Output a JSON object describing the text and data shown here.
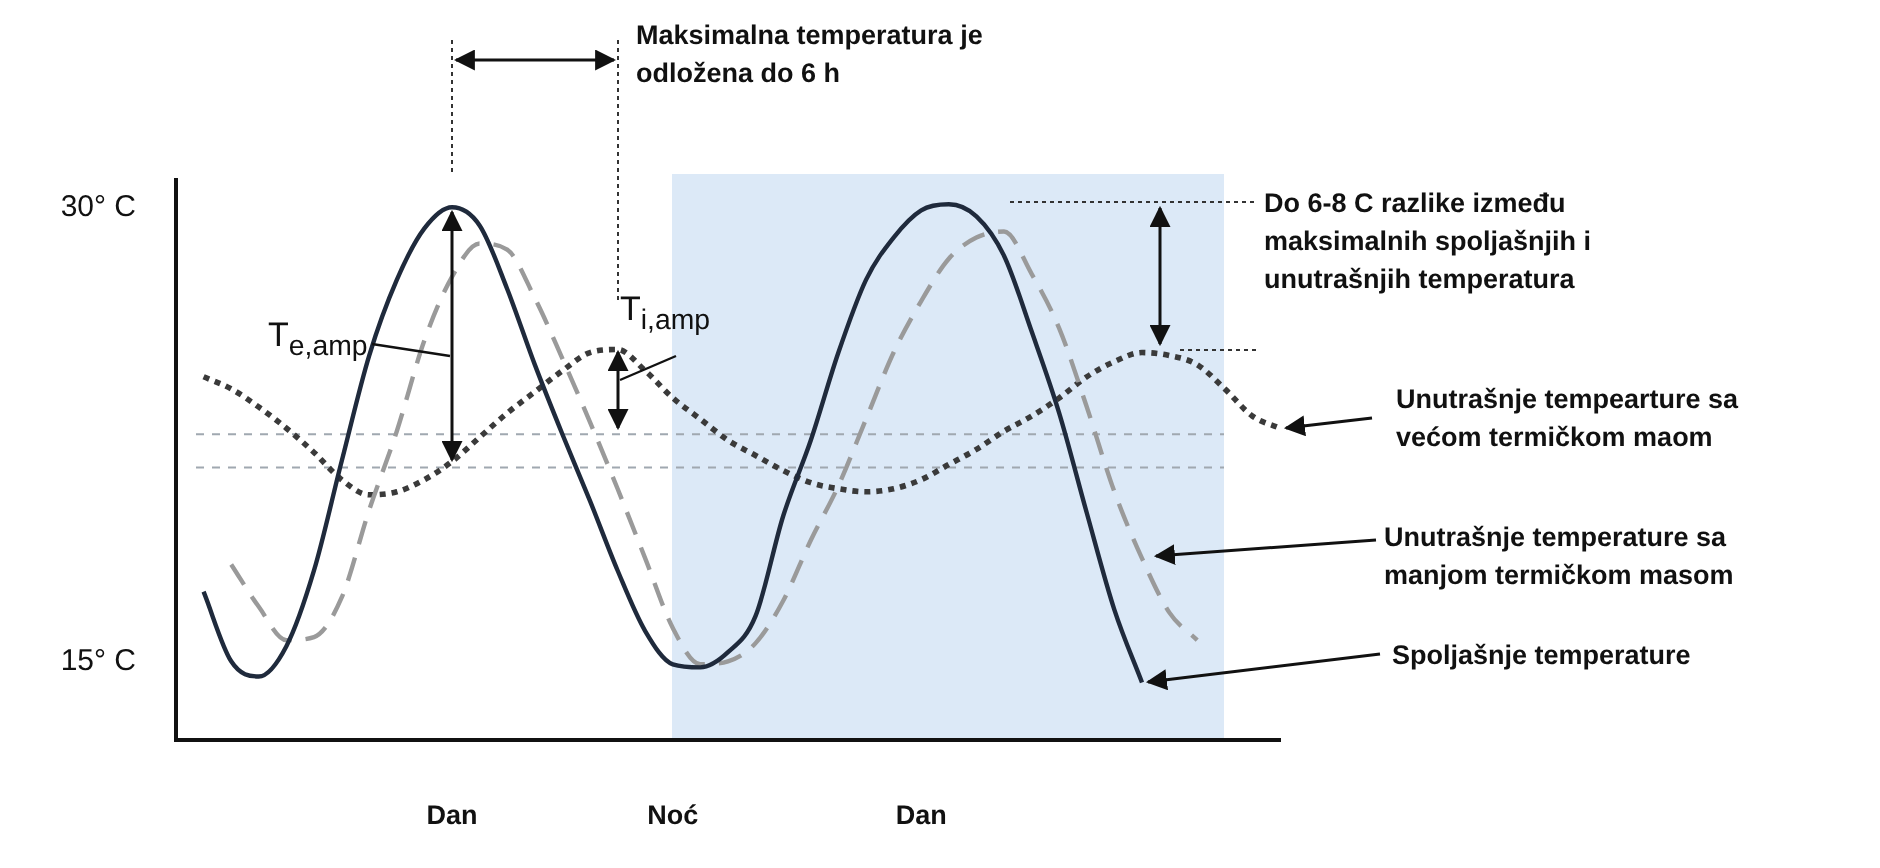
{
  "chart_data": {
    "type": "line",
    "categories": [
      null,
      null,
      null,
      null,
      null,
      null,
      null,
      null,
      null,
      null,
      "Dan",
      null,
      null,
      null,
      null,
      null,
      null,
      null,
      "Noć",
      null,
      null,
      null,
      null,
      null,
      null,
      null,
      null,
      "Dan",
      null,
      null,
      null,
      null,
      null,
      null,
      null,
      null,
      null,
      null,
      null,
      null,
      null
    ],
    "ylim": [
      12.4,
      30.9
    ],
    "yticks": [
      {
        "value": 15,
        "label": "15° C"
      },
      {
        "value": 30,
        "label": "30° C"
      }
    ],
    "grid": false,
    "legend": "right",
    "marker": "none",
    "series": [
      {
        "name": "Spoljašnje temperature",
        "color": "#1f2a3c",
        "line_style": "solid",
        "values": [
          null,
          17.3,
          15.0,
          14.5,
          15.5,
          18.0,
          21.6,
          25.1,
          27.6,
          29.3,
          30.0,
          29.4,
          27.3,
          24.8,
          22.5,
          20.3,
          18.0,
          16.0,
          14.9,
          14.8,
          15.3,
          16.5,
          19.8,
          22.3,
          25.2,
          27.6,
          29.0,
          29.9,
          30.1,
          29.7,
          28.4,
          25.9,
          23.2,
          19.9,
          16.7,
          14.3,
          null,
          null,
          null,
          null,
          null
        ]
      },
      {
        "name": "Unutrašnje temperature sa manjom termičkom masom",
        "color": "#9a9a9a",
        "line_style": "dashed",
        "values": [
          null,
          null,
          18.2,
          16.8,
          15.7,
          15.8,
          17.1,
          20.0,
          22.6,
          25.6,
          27.7,
          28.8,
          28.6,
          27.0,
          25.0,
          22.9,
          20.7,
          18.4,
          16.1,
          14.9,
          15.0,
          15.6,
          17.0,
          19.0,
          20.8,
          23.0,
          25.2,
          26.9,
          28.3,
          29.0,
          29.2,
          27.8,
          26.0,
          23.4,
          20.6,
          18.4,
          16.6,
          15.7,
          null,
          null,
          null
        ]
      },
      {
        "name": "Unutrašnje tempearture sa većom termičkom maom",
        "color": "#3a3a3a",
        "line_style": "dotted",
        "values": [
          null,
          24.4,
          24.0,
          23.4,
          22.7,
          21.9,
          21.0,
          20.5,
          20.6,
          21.0,
          21.6,
          22.4,
          23.2,
          23.9,
          24.6,
          25.2,
          25.3,
          24.6,
          23.7,
          23.0,
          22.3,
          21.8,
          21.3,
          20.9,
          20.7,
          20.6,
          20.7,
          21.0,
          21.5,
          22.0,
          22.6,
          23.1,
          23.7,
          24.4,
          24.9,
          25.2,
          25.1,
          24.8,
          24.0,
          23.1,
          22.7
        ]
      }
    ],
    "ref_lines": [
      {
        "axis": "y",
        "value": 22.5,
        "color": "#a0a8b0",
        "line_style": "dashed"
      },
      {
        "axis": "y",
        "value": 21.4,
        "color": "#a0a8b0",
        "line_style": "dashed"
      }
    ],
    "annotations": [
      "Maksimalna temperatura je odložena do 6 h",
      "Do 6-8 C razlike između maksimalnih spoljašnjih i unutrašnjih temperatura",
      "T$_{e,amp}$",
      "T$_{i,amp}$"
    ]
  }
}
